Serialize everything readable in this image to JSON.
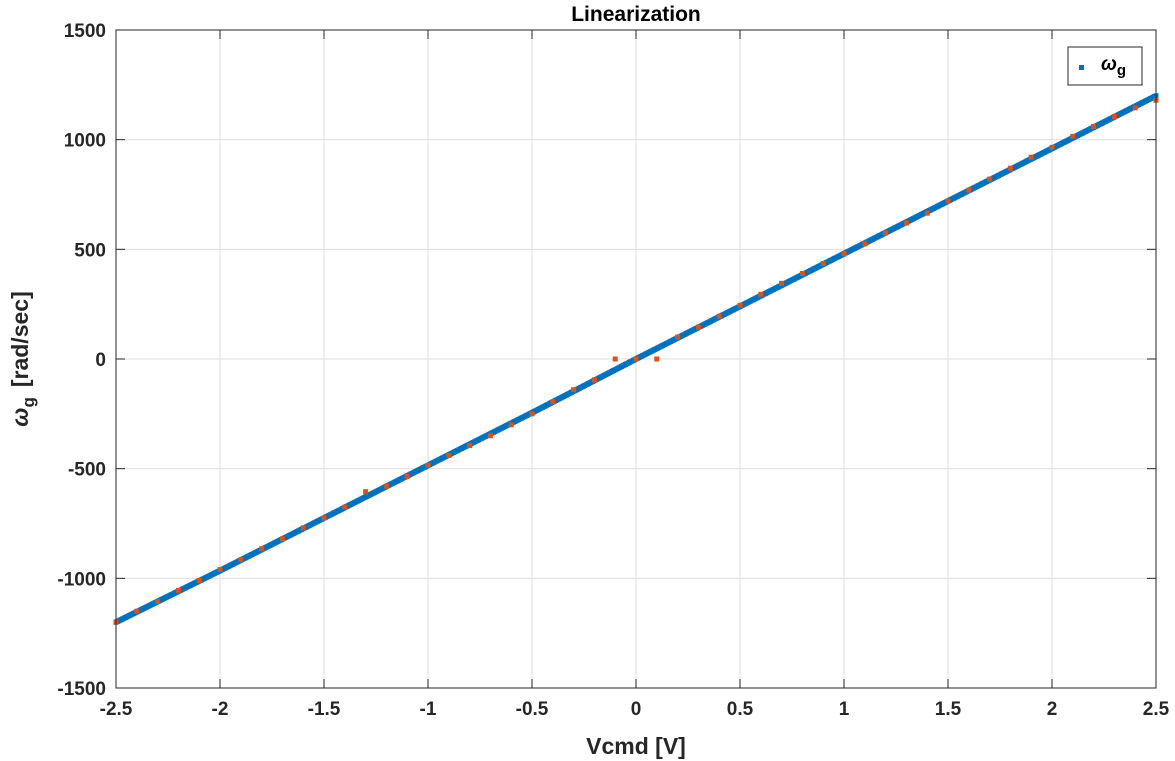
{
  "chart_data": {
    "type": "scatter",
    "title": "Linearization",
    "xlabel": "Vcmd [V]",
    "ylabel": {
      "symbol": "ω",
      "subscript": "g",
      "unit": "[rad/sec]"
    },
    "xlim": [
      -2.5,
      2.5
    ],
    "ylim": [
      -1500,
      1500
    ],
    "xticks": [
      -2.5,
      -2,
      -1.5,
      -1,
      -0.5,
      0,
      0.5,
      1,
      1.5,
      2,
      2.5
    ],
    "xtick_labels": [
      "-2.5",
      "-2",
      "-1.5",
      "-1",
      "-0.5",
      "0",
      "0.5",
      "1",
      "1.5",
      "2",
      "2.5"
    ],
    "yticks": [
      -1500,
      -1000,
      -500,
      0,
      500,
      1000,
      1500
    ],
    "ytick_labels": [
      "-1500",
      "-1000",
      "-500",
      "0",
      "500",
      "1000",
      "1500"
    ],
    "grid": true,
    "legend": {
      "position": "top-right",
      "entries": [
        {
          "symbol": "ω",
          "subscript": "g"
        }
      ]
    },
    "series": [
      {
        "name": "ω_g",
        "color": "#0072BD",
        "style": "dense-markers",
        "x": [
          -2.5,
          -2.0,
          -1.5,
          -1.0,
          -0.5,
          0.0,
          0.5,
          1.0,
          1.5,
          2.0,
          2.5
        ],
        "y": [
          -1200,
          -965,
          -725,
          -485,
          -245,
          0,
          240,
          480,
          720,
          960,
          1200
        ]
      },
      {
        "color": "#D95319",
        "style": "markers",
        "x": [
          -2.5,
          -2.4,
          -2.3,
          -2.2,
          -2.1,
          -2.0,
          -1.9,
          -1.8,
          -1.7,
          -1.6,
          -1.5,
          -1.4,
          -1.3,
          -1.2,
          -1.1,
          -1.0,
          -0.9,
          -0.8,
          -0.7,
          -0.6,
          -0.5,
          -0.4,
          -0.3,
          -0.2,
          -0.1,
          0.0,
          0.1,
          0.2,
          0.3,
          0.4,
          0.5,
          0.6,
          0.7,
          0.8,
          0.9,
          1.0,
          1.1,
          1.2,
          1.3,
          1.4,
          1.5,
          1.6,
          1.7,
          1.8,
          1.9,
          2.0,
          2.1,
          2.2,
          2.3,
          2.4,
          2.5
        ],
        "y": [
          -1200,
          -1150,
          -1105,
          -1055,
          -1010,
          -960,
          -915,
          -865,
          -820,
          -770,
          -725,
          -675,
          -605,
          -580,
          -535,
          -485,
          -440,
          -395,
          -350,
          -300,
          -250,
          -195,
          -140,
          -95,
          0,
          0,
          0,
          100,
          145,
          195,
          245,
          295,
          345,
          390,
          435,
          480,
          525,
          575,
          620,
          665,
          720,
          770,
          820,
          870,
          920,
          965,
          1015,
          1060,
          1105,
          1145,
          1180
        ]
      }
    ]
  }
}
